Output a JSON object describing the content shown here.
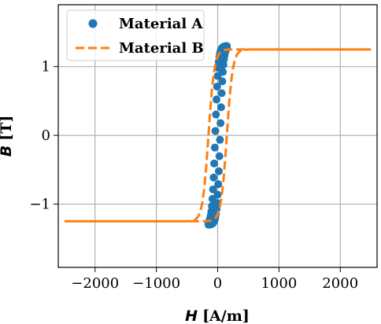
{
  "chart_data": {
    "type": "scatter",
    "xlabel": {
      "symbol": "H",
      "unit": "[A/m]"
    },
    "ylabel": {
      "symbol": "B",
      "unit": "[T]"
    },
    "xlim": [
      -2600,
      2600
    ],
    "ylim": [
      -1.92,
      1.9
    ],
    "xticks": [
      -2000,
      -1000,
      0,
      1000,
      2000
    ],
    "yticks": [
      -1,
      0,
      1
    ],
    "xtick_labels": [
      "−2000",
      "−1000",
      "0",
      "1000",
      "2000"
    ],
    "ytick_labels": [
      "−1",
      "0",
      "1"
    ],
    "grid": true,
    "legend_position": "top-left",
    "series": [
      {
        "name": "Material A",
        "style": "markers",
        "color": "#1f77b4",
        "hysteresis": {
          "Hc": 40,
          "Bs": 1.3,
          "a": 50,
          "Hmax": 150,
          "points_per_branch": 32
        }
      },
      {
        "name": "Material B",
        "style": "dashed",
        "color": "#ff7f0e",
        "hysteresis": {
          "Hc": 150,
          "Bs": 1.25,
          "a": 95,
          "Hmax": 2500,
          "points_per_branch": 160
        }
      }
    ]
  }
}
